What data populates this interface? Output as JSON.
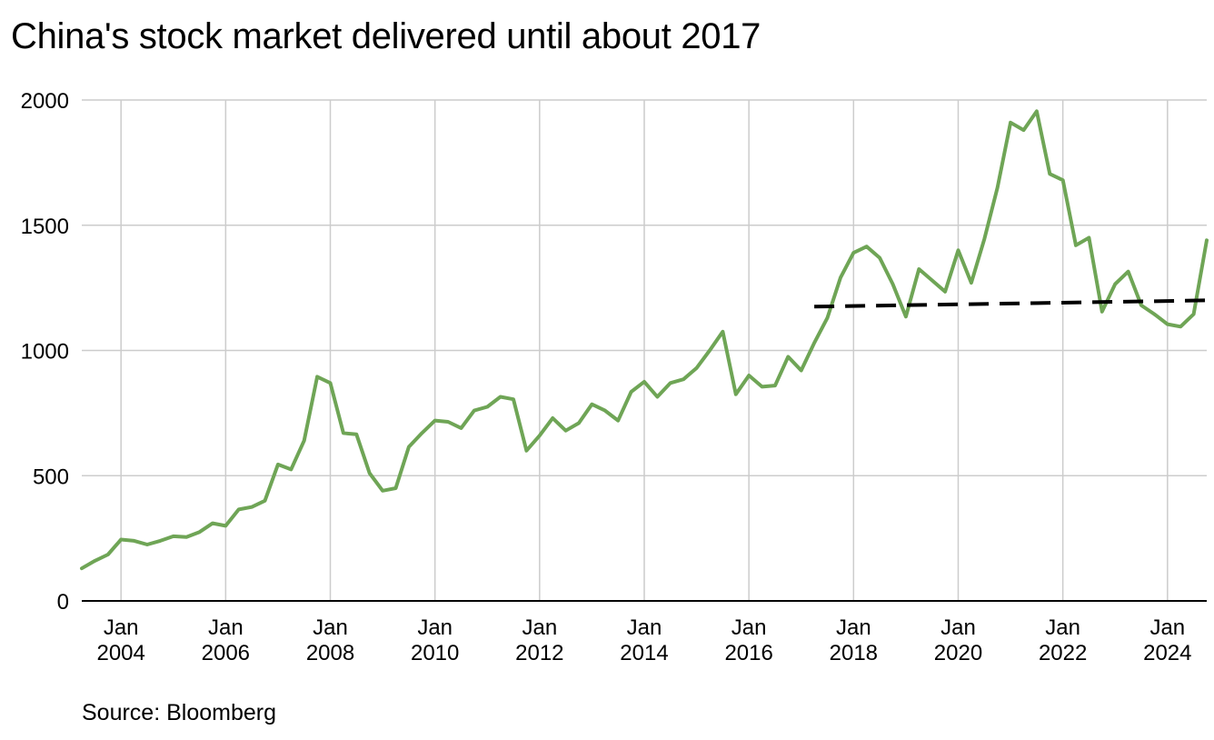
{
  "title": "China's stock market delivered until about 2017",
  "source": "Source: Bloomberg",
  "colors": {
    "series": "#6fa556",
    "trend": "#000000",
    "grid": "#cccccc",
    "axis": "#000000"
  },
  "chart_data": {
    "type": "line",
    "title": "China's stock market delivered until about 2017",
    "xlabel": "",
    "ylabel": "",
    "xlim": [
      2003.25,
      2024.75
    ],
    "ylim": [
      0,
      2000
    ],
    "grid": true,
    "legend": "none",
    "y_ticks": [
      0,
      500,
      1000,
      1500,
      2000
    ],
    "x_ticks": [
      {
        "x": 2004,
        "line1": "Jan",
        "line2": "2004"
      },
      {
        "x": 2006,
        "line1": "Jan",
        "line2": "2006"
      },
      {
        "x": 2008,
        "line1": "Jan",
        "line2": "2008"
      },
      {
        "x": 2010,
        "line1": "Jan",
        "line2": "2010"
      },
      {
        "x": 2012,
        "line1": "Jan",
        "line2": "2012"
      },
      {
        "x": 2014,
        "line1": "Jan",
        "line2": "2014"
      },
      {
        "x": 2016,
        "line1": "Jan",
        "line2": "2016"
      },
      {
        "x": 2018,
        "line1": "Jan",
        "line2": "2018"
      },
      {
        "x": 2020,
        "line1": "Jan",
        "line2": "2020"
      },
      {
        "x": 2022,
        "line1": "Jan",
        "line2": "2022"
      },
      {
        "x": 2024,
        "line1": "Jan",
        "line2": "2024"
      }
    ],
    "series": [
      {
        "x": [
          2003.25,
          2003.5,
          2003.75,
          2004.0,
          2004.25,
          2004.5,
          2004.75,
          2005.0,
          2005.25,
          2005.5,
          2005.75,
          2006.0,
          2006.25,
          2006.5,
          2006.75,
          2007.0,
          2007.25,
          2007.5,
          2007.75,
          2008.0,
          2008.25,
          2008.5,
          2008.75,
          2009.0,
          2009.25,
          2009.5,
          2009.75,
          2010.0,
          2010.25,
          2010.5,
          2010.75,
          2011.0,
          2011.25,
          2011.5,
          2011.75,
          2012.0,
          2012.25,
          2012.5,
          2012.75,
          2013.0,
          2013.25,
          2013.5,
          2013.75,
          2014.0,
          2014.25,
          2014.5,
          2014.75,
          2015.0,
          2015.25,
          2015.5,
          2015.75,
          2016.0,
          2016.25,
          2016.5,
          2016.75,
          2017.0,
          2017.25,
          2017.5,
          2017.75,
          2018.0,
          2018.25,
          2018.5,
          2018.75,
          2019.0,
          2019.25,
          2019.5,
          2019.75,
          2020.0,
          2020.25,
          2020.5,
          2020.75,
          2021.0,
          2021.25,
          2021.5,
          2021.75,
          2022.0,
          2022.25,
          2022.5,
          2022.75,
          2023.0,
          2023.25,
          2023.5,
          2023.75,
          2024.0,
          2024.25,
          2024.5,
          2024.75
        ],
        "values": [
          130,
          160,
          185,
          245,
          240,
          225,
          240,
          258,
          255,
          275,
          310,
          300,
          365,
          375,
          400,
          545,
          525,
          640,
          895,
          870,
          670,
          665,
          510,
          440,
          450,
          615,
          670,
          720,
          715,
          690,
          760,
          775,
          815,
          805,
          600,
          660,
          730,
          680,
          710,
          785,
          760,
          720,
          835,
          875,
          815,
          870,
          885,
          930,
          1000,
          1075,
          825,
          900,
          855,
          860,
          975,
          920,
          1030,
          1130,
          1290,
          1390,
          1415,
          1370,
          1265,
          1135,
          1325,
          1280,
          1235,
          1400,
          1270,
          1445,
          1650,
          1910,
          1880,
          1955,
          1705,
          1680,
          1420,
          1450,
          1155,
          1265,
          1315,
          1180,
          1145,
          1105,
          1095,
          1145,
          1440
        ]
      },
      {
        "x": [
          2017.25,
          2024.75
        ],
        "values": [
          1175,
          1200
        ]
      }
    ]
  }
}
